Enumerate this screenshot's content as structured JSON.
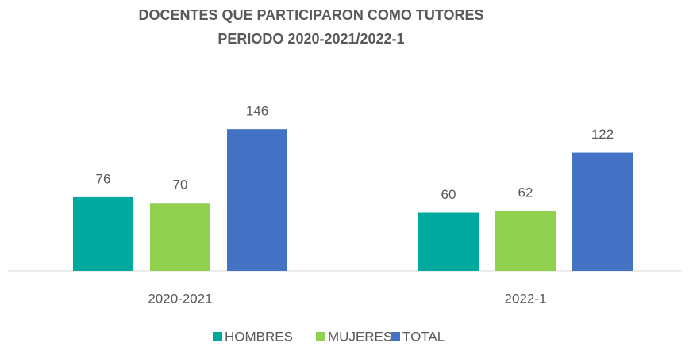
{
  "chart_data": {
    "type": "bar",
    "title": "DOCENTES QUE PARTICIPARON COMO TUTORES",
    "subtitle": "PERIODO 2020-2021/2022-1",
    "categories": [
      "2020-2021",
      "2022-1"
    ],
    "series": [
      {
        "name": "HOMBRES",
        "color": "#00a99d",
        "values": [
          76,
          60
        ]
      },
      {
        "name": "MUJERES",
        "color": "#92d050",
        "values": [
          70,
          62
        ]
      },
      {
        "name": "TOTAL",
        "color": "#4472c4",
        "values": [
          146,
          122
        ]
      }
    ],
    "ylim": [
      0,
      160
    ],
    "legend": "bottom"
  }
}
